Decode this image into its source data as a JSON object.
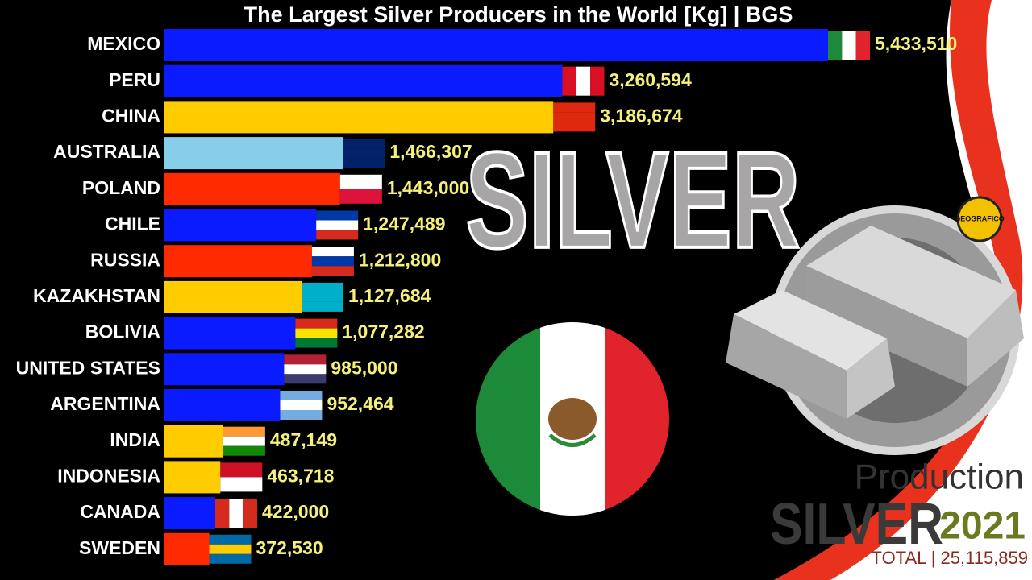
{
  "chart_data": {
    "type": "bar",
    "orientation": "horizontal",
    "title": "The Largest Silver Producers in the World [Kg] | BGS",
    "categories": [
      "MEXICO",
      "PERU",
      "CHINA",
      "AUSTRALIA",
      "POLAND",
      "CHILE",
      "RUSSIA",
      "KAZAKHSTAN",
      "BOLIVIA",
      "UNITED STATES",
      "ARGENTINA",
      "INDIA",
      "INDONESIA",
      "CANADA",
      "SWEDEN"
    ],
    "values": [
      5433510,
      3260594,
      3186674,
      1466307,
      1443000,
      1247489,
      1212800,
      1127684,
      1077282,
      985000,
      952464,
      487149,
      463718,
      422000,
      372530
    ],
    "value_labels": [
      "5,433,510",
      "3,260,594",
      "3,186,674",
      "1,466,307",
      "1,443,000",
      "1,247,489",
      "1,212,800",
      "1,127,684",
      "1,077,282",
      "985,000",
      "952,464",
      "487,149",
      "463,718",
      "422,000",
      "372,530"
    ],
    "colors": [
      "#0a1cff",
      "#0a1cff",
      "#ffcc00",
      "#87ceeb",
      "#ff2a00",
      "#0a1cff",
      "#ff2a00",
      "#ffcc00",
      "#0a1cff",
      "#0a1cff",
      "#0a1cff",
      "#ffcc00",
      "#ffcc00",
      "#0a1cff",
      "#ff2a00"
    ],
    "annotations": {
      "metal": "SILVER",
      "caption": "Production",
      "caption_metal": "SILVER",
      "year": "2021",
      "total": "TOTAL | 25,115,859",
      "logo": "GEOGRAFICO"
    }
  }
}
